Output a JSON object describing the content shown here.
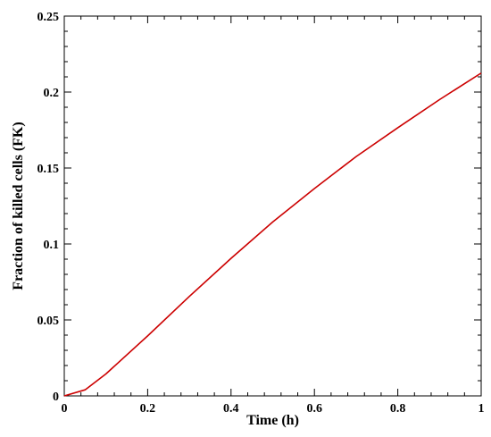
{
  "chart_data": {
    "type": "line",
    "title": "",
    "xlabel": "Time (h)",
    "ylabel": "Fraction of killed cells (FK)",
    "xlim": [
      0,
      1
    ],
    "ylim": [
      0,
      0.25
    ],
    "xticks": [
      0,
      0.2,
      0.4,
      0.6,
      0.8,
      1
    ],
    "xtick_labels": [
      "0",
      "0.2",
      "0.4",
      "0.6",
      "0.8",
      "1"
    ],
    "yticks": [
      0,
      0.05,
      0.1,
      0.15,
      0.2,
      0.25
    ],
    "ytick_labels": [
      "0",
      "0.05",
      "0.1",
      "0.15",
      "0.2",
      "0.25"
    ],
    "grid": false,
    "legend": "none",
    "series": [
      {
        "color": "#cc0000",
        "x": [
          0,
          0.05,
          0.1,
          0.2,
          0.3,
          0.4,
          0.5,
          0.6,
          0.7,
          0.8,
          0.9,
          1.0
        ],
        "y": [
          0,
          0.004,
          0.0145,
          0.0395,
          0.0655,
          0.0905,
          0.1145,
          0.1365,
          0.1575,
          0.1765,
          0.195,
          0.2125
        ]
      }
    ]
  }
}
